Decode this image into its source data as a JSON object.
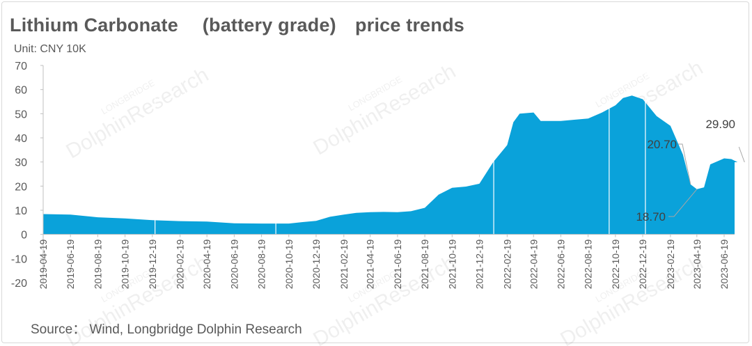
{
  "title": "Lithium Carbonate 　(battery grade)　price trends",
  "unit": "Unit: CNY 10K",
  "source": "Source： Wind, Longbridge Dolphin Research",
  "watermark": {
    "line1": "LONGBRIDGE",
    "line2": "DolphinResearch"
  },
  "colors": {
    "area": "#0aa2da",
    "axis": "#bfbfbf",
    "text": "#595959",
    "callout": "#a6a6a6"
  },
  "chart_data": {
    "type": "area",
    "title": "Lithium Carbonate 　(battery grade)　price trends",
    "ylabel": "Unit: CNY 10K",
    "xlabel": "",
    "ylim": [
      -20,
      70
    ],
    "yticks": [
      "70",
      "60",
      "50",
      "40",
      "30",
      "20",
      "10",
      "0",
      "-10",
      "-20"
    ],
    "xticks": [
      "2019-04-19",
      "2019-06-19",
      "2019-08-19",
      "2019-10-19",
      "2019-12-19",
      "2020-02-19",
      "2020-04-19",
      "2020-06-19",
      "2020-08-19",
      "2020-10-19",
      "2020-12-19",
      "2021-02-19",
      "2021-04-19",
      "2021-06-19",
      "2021-08-19",
      "2021-10-19",
      "2021-12-19",
      "2022-02-19",
      "2022-04-19",
      "2022-06-19",
      "2022-08-19",
      "2022-10-19",
      "2022-12-19",
      "2023-02-19",
      "2023-04-19",
      "2023-06-19"
    ],
    "grid": false,
    "legend": "none",
    "series": [
      {
        "name": "",
        "points": [
          [
            "2019-04-19",
            8.4
          ],
          [
            "2019-06-19",
            8.2
          ],
          [
            "2019-08-19",
            7.1
          ],
          [
            "2019-10-19",
            6.6
          ],
          [
            "2019-12-19",
            5.9
          ],
          [
            "2020-02-19",
            5.5
          ],
          [
            "2020-04-19",
            5.3
          ],
          [
            "2020-06-19",
            4.6
          ],
          [
            "2020-08-19",
            4.5
          ],
          [
            "2020-10-19",
            4.5
          ],
          [
            "2020-11-19",
            5.1
          ],
          [
            "2020-12-19",
            5.6
          ],
          [
            "2021-01-19",
            7.3
          ],
          [
            "2021-02-19",
            8.2
          ],
          [
            "2021-03-19",
            8.9
          ],
          [
            "2021-04-19",
            9.2
          ],
          [
            "2021-05-19",
            9.3
          ],
          [
            "2021-06-19",
            9.2
          ],
          [
            "2021-07-19",
            9.6
          ],
          [
            "2021-08-19",
            11.0
          ],
          [
            "2021-09-19",
            16.5
          ],
          [
            "2021-10-19",
            19.3
          ],
          [
            "2021-11-19",
            19.8
          ],
          [
            "2021-12-19",
            21.0
          ],
          [
            "2022-01-19",
            30.0
          ],
          [
            "2022-02-19",
            37.0
          ],
          [
            "2022-03-05",
            46.5
          ],
          [
            "2022-03-19",
            50.0
          ],
          [
            "2022-04-19",
            50.5
          ],
          [
            "2022-05-05",
            47.0
          ],
          [
            "2022-06-19",
            47.0
          ],
          [
            "2022-07-19",
            47.5
          ],
          [
            "2022-08-19",
            48.0
          ],
          [
            "2022-09-19",
            50.5
          ],
          [
            "2022-10-19",
            53.5
          ],
          [
            "2022-11-05",
            56.5
          ],
          [
            "2022-11-25",
            57.5
          ],
          [
            "2022-12-19",
            56.0
          ],
          [
            "2023-01-19",
            49.0
          ],
          [
            "2023-02-19",
            45.0
          ],
          [
            "2023-03-19",
            33.0
          ],
          [
            "2023-04-05",
            20.7
          ],
          [
            "2023-04-19",
            18.7
          ],
          [
            "2023-05-05",
            19.5
          ],
          [
            "2023-05-19",
            29.0
          ],
          [
            "2023-06-19",
            31.5
          ],
          [
            "2023-07-05",
            31.2
          ],
          [
            "2023-07-19",
            29.9
          ]
        ]
      }
    ],
    "annotations": [
      {
        "label": "29.90",
        "date": "2023-07-19",
        "value": 29.9
      },
      {
        "label": "20.70",
        "date": "2023-04-05",
        "value": 20.7
      },
      {
        "label": "18.70",
        "date": "2023-04-19",
        "value": 18.7
      }
    ]
  }
}
